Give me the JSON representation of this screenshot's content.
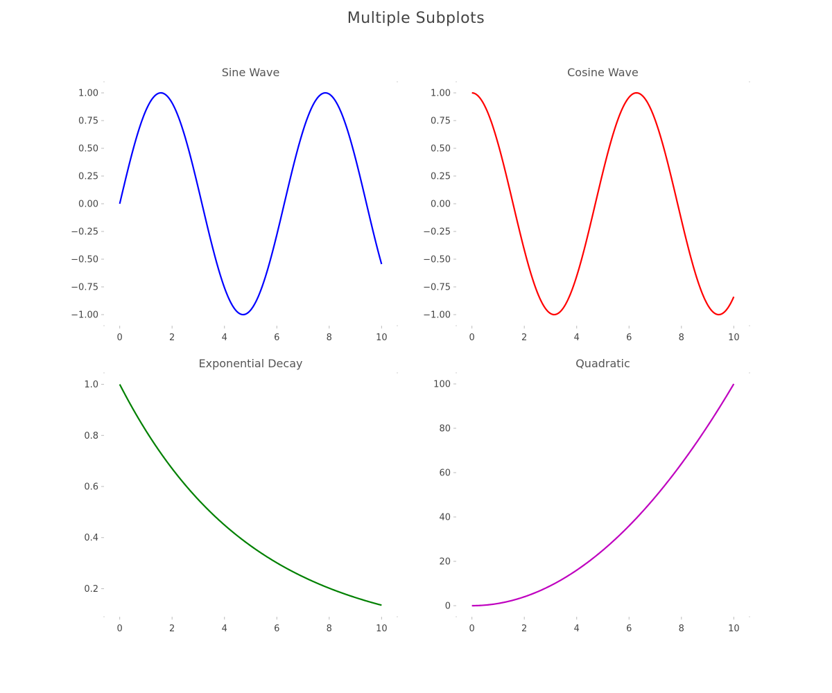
{
  "figure": {
    "title": "Multiple Subplots"
  },
  "chart_data": [
    {
      "type": "line",
      "title": "Sine Wave",
      "xlabel": "",
      "ylabel": "",
      "function": "sin",
      "color": "#0000ff",
      "x": [
        0,
        0.5,
        1,
        1.5,
        2,
        2.5,
        3,
        3.5,
        4,
        4.5,
        5,
        5.5,
        6,
        6.5,
        7,
        7.5,
        8,
        8.5,
        9,
        9.5,
        10
      ],
      "y": [
        0.0,
        0.479,
        0.841,
        0.997,
        0.909,
        0.598,
        0.141,
        -0.351,
        -0.757,
        -0.978,
        -0.959,
        -0.706,
        -0.279,
        0.215,
        0.657,
        0.938,
        0.989,
        0.798,
        0.412,
        -0.075,
        -0.544
      ],
      "xlim": [
        -0.6,
        10.6
      ],
      "ylim": [
        -1.1,
        1.1
      ],
      "xticks": [
        0,
        2,
        4,
        6,
        8,
        10
      ],
      "xtick_labels": [
        "0",
        "2",
        "4",
        "6",
        "8",
        "10"
      ],
      "yticks": [
        1.0,
        0.75,
        0.5,
        0.25,
        0.0,
        -0.25,
        -0.5,
        -0.75,
        -1.0
      ],
      "ytick_labels": [
        "1.00",
        "0.75",
        "0.50",
        "0.25",
        "0.00",
        "−0.25",
        "−0.50",
        "−0.75",
        "−1.00"
      ],
      "grid": false
    },
    {
      "type": "line",
      "title": "Cosine Wave",
      "xlabel": "",
      "ylabel": "",
      "function": "cos",
      "color": "#ff0000",
      "x": [
        0,
        0.5,
        1,
        1.5,
        2,
        2.5,
        3,
        3.5,
        4,
        4.5,
        5,
        5.5,
        6,
        6.5,
        7,
        7.5,
        8,
        8.5,
        9,
        9.5,
        10
      ],
      "y": [
        1.0,
        0.878,
        0.54,
        0.071,
        -0.416,
        -0.801,
        -0.99,
        -0.936,
        -0.654,
        -0.211,
        0.284,
        0.709,
        0.96,
        0.977,
        0.754,
        0.347,
        -0.146,
        -0.602,
        -0.911,
        -0.997,
        -0.839
      ],
      "xlim": [
        -0.6,
        10.6
      ],
      "ylim": [
        -1.1,
        1.1
      ],
      "xticks": [
        0,
        2,
        4,
        6,
        8,
        10
      ],
      "xtick_labels": [
        "0",
        "2",
        "4",
        "6",
        "8",
        "10"
      ],
      "yticks": [
        1.0,
        0.75,
        0.5,
        0.25,
        0.0,
        -0.25,
        -0.5,
        -0.75,
        -1.0
      ],
      "ytick_labels": [
        "1.00",
        "0.75",
        "0.50",
        "0.25",
        "0.00",
        "−0.25",
        "−0.50",
        "−0.75",
        "−1.00"
      ],
      "grid": false
    },
    {
      "type": "line",
      "title": "Exponential Decay",
      "xlabel": "",
      "ylabel": "",
      "function": "expdecay",
      "color": "#008000",
      "x": [
        0,
        1,
        2,
        3,
        4,
        5,
        6,
        7,
        8,
        9,
        10
      ],
      "y": [
        1.0,
        0.819,
        0.67,
        0.549,
        0.449,
        0.368,
        0.301,
        0.247,
        0.202,
        0.165,
        0.135
      ],
      "xlim": [
        -0.6,
        10.6
      ],
      "ylim": [
        0.09,
        1.045
      ],
      "xticks": [
        0,
        2,
        4,
        6,
        8,
        10
      ],
      "xtick_labels": [
        "0",
        "2",
        "4",
        "6",
        "8",
        "10"
      ],
      "yticks": [
        1.0,
        0.8,
        0.6,
        0.4,
        0.2
      ],
      "ytick_labels": [
        "1.0",
        "0.8",
        "0.6",
        "0.4",
        "0.2"
      ],
      "grid": false
    },
    {
      "type": "line",
      "title": "Quadratic",
      "xlabel": "",
      "ylabel": "",
      "function": "square",
      "color": "#bf00bf",
      "x": [
        0,
        1,
        2,
        3,
        4,
        5,
        6,
        7,
        8,
        9,
        10
      ],
      "y": [
        0,
        1,
        4,
        9,
        16,
        25,
        36,
        49,
        64,
        81,
        100
      ],
      "xlim": [
        -0.6,
        10.6
      ],
      "ylim": [
        -5,
        105
      ],
      "xticks": [
        0,
        2,
        4,
        6,
        8,
        10
      ],
      "xtick_labels": [
        "0",
        "2",
        "4",
        "6",
        "8",
        "10"
      ],
      "yticks": [
        100,
        80,
        60,
        40,
        20,
        0
      ],
      "ytick_labels": [
        "100",
        "80",
        "60",
        "40",
        "20",
        "0"
      ],
      "grid": false
    }
  ]
}
